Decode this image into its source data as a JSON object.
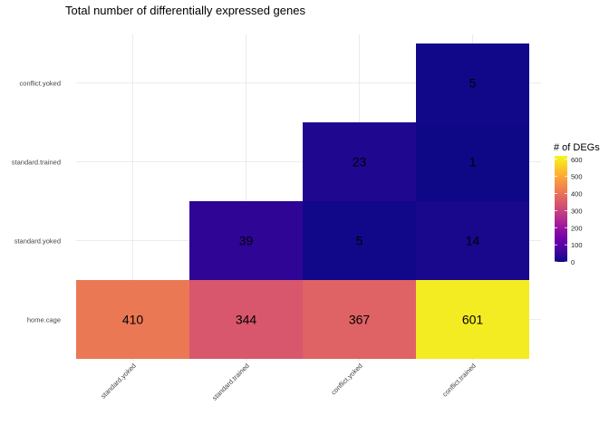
{
  "chart_data": {
    "type": "heatmap",
    "title": "Total number of differentially expressed genes",
    "xlabel": "",
    "ylabel": "",
    "x_categories": [
      "standard.yoked",
      "standard.trained",
      "conflict.yoked",
      "conflict.trained"
    ],
    "y_categories": [
      "home.cage",
      "standard.yoked",
      "standard.trained",
      "conflict.yoked"
    ],
    "cells": [
      {
        "x": "standard.yoked",
        "y": "home.cage",
        "value": 410
      },
      {
        "x": "standard.trained",
        "y": "home.cage",
        "value": 344
      },
      {
        "x": "conflict.yoked",
        "y": "home.cage",
        "value": 367
      },
      {
        "x": "conflict.trained",
        "y": "home.cage",
        "value": 601
      },
      {
        "x": "standard.trained",
        "y": "standard.yoked",
        "value": 39
      },
      {
        "x": "conflict.yoked",
        "y": "standard.yoked",
        "value": 5
      },
      {
        "x": "conflict.trained",
        "y": "standard.yoked",
        "value": 14
      },
      {
        "x": "conflict.yoked",
        "y": "standard.trained",
        "value": 23
      },
      {
        "x": "conflict.trained",
        "y": "standard.trained",
        "value": 1
      },
      {
        "x": "conflict.trained",
        "y": "conflict.yoked",
        "value": 5
      }
    ],
    "legend": {
      "title": "# of DEGs",
      "placement": "right",
      "range": [
        0,
        620
      ],
      "ticks": [
        0,
        100,
        200,
        300,
        400,
        500,
        600
      ],
      "colormap": [
        "#0d0887",
        "#41049d",
        "#6a00a8",
        "#8f0da4",
        "#b12a90",
        "#cc4778",
        "#e16462",
        "#f1844b",
        "#fca636",
        "#fcce25",
        "#f0f921"
      ]
    },
    "grid": true,
    "x_tick_rotation": -45
  }
}
